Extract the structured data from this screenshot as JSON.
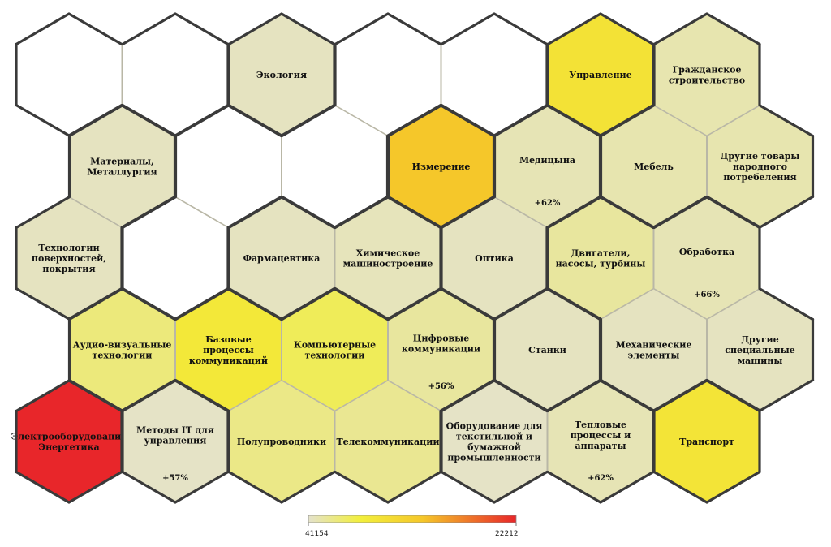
{
  "chart_data": {
    "type": "heatmap",
    "layout": "hexagonal",
    "colorscale": {
      "min_label": "41154",
      "max_label": "22212",
      "colors": [
        "#e4e2cc",
        "#f2ef3c",
        "#f5c72a",
        "#e8262a"
      ]
    },
    "cells": [
      {
        "row": 0,
        "col": 0,
        "label": "",
        "level": null,
        "pct": ""
      },
      {
        "row": 0,
        "col": 1,
        "label": "",
        "level": null,
        "pct": ""
      },
      {
        "row": 0,
        "col": 2,
        "label": "Экология",
        "level": 0.02,
        "pct": ""
      },
      {
        "row": 0,
        "col": 3,
        "label": "",
        "level": null,
        "pct": ""
      },
      {
        "row": 0,
        "col": 4,
        "label": "",
        "level": null,
        "pct": ""
      },
      {
        "row": 0,
        "col": 5,
        "label": "Управление",
        "level": 0.35,
        "pct": ""
      },
      {
        "row": 0,
        "col": 6,
        "label": "Гражданское строительство",
        "level": 0.05,
        "pct": ""
      },
      {
        "row": 1,
        "col": 0,
        "label": "Материалы, Металлургия",
        "level": 0.02,
        "pct": ""
      },
      {
        "row": 1,
        "col": 1,
        "label": "",
        "level": null,
        "pct": ""
      },
      {
        "row": 1,
        "col": 2,
        "label": "",
        "level": null,
        "pct": ""
      },
      {
        "row": 1,
        "col": 3,
        "label": "Измерение",
        "level": 0.55,
        "pct": ""
      },
      {
        "row": 1,
        "col": 4,
        "label": "Медицына",
        "level": 0.04,
        "pct": "+62%"
      },
      {
        "row": 1,
        "col": 5,
        "label": "Мебель",
        "level": 0.05,
        "pct": ""
      },
      {
        "row": 1,
        "col": 6,
        "label": "Другие товары народного потребеления",
        "level": 0.05,
        "pct": ""
      },
      {
        "row": 2,
        "col": 0,
        "label": "Технологии поверхностей, покрытия",
        "level": 0.02,
        "pct": ""
      },
      {
        "row": 2,
        "col": 1,
        "label": "",
        "level": null,
        "pct": ""
      },
      {
        "row": 2,
        "col": 2,
        "label": "Фармацевтика",
        "level": 0.02,
        "pct": ""
      },
      {
        "row": 2,
        "col": 3,
        "label": "Химическое машиностроение",
        "level": 0.03,
        "pct": ""
      },
      {
        "row": 2,
        "col": 4,
        "label": "Оптика",
        "level": 0.02,
        "pct": ""
      },
      {
        "row": 2,
        "col": 5,
        "label": "Двигатели, насосы, турбины",
        "level": 0.08,
        "pct": ""
      },
      {
        "row": 2,
        "col": 6,
        "label": "Обработка",
        "level": 0.04,
        "pct": "+66%"
      },
      {
        "row": 3,
        "col": 0,
        "label": "Аудио-визуальные технологии",
        "level": 0.14,
        "pct": ""
      },
      {
        "row": 3,
        "col": 1,
        "label": "Базовые процессы коммуникаций",
        "level": 0.3,
        "pct": ""
      },
      {
        "row": 3,
        "col": 2,
        "label": "Компьютерные технологии",
        "level": 0.2,
        "pct": ""
      },
      {
        "row": 3,
        "col": 3,
        "label": "Цифровые коммуникации",
        "level": 0.08,
        "pct": "+56%"
      },
      {
        "row": 3,
        "col": 4,
        "label": "Станки",
        "level": 0.02,
        "pct": ""
      },
      {
        "row": 3,
        "col": 5,
        "label": "Механические элементы",
        "level": 0.02,
        "pct": ""
      },
      {
        "row": 3,
        "col": 6,
        "label": "Другие специальные машины",
        "level": 0.02,
        "pct": ""
      },
      {
        "row": 4,
        "col": 0,
        "label": "Электрооборудование Энергетика",
        "level": 1.0,
        "pct": ""
      },
      {
        "row": 4,
        "col": 1,
        "label": "Методы IT для управления",
        "level": 0.01,
        "pct": "+57%"
      },
      {
        "row": 4,
        "col": 2,
        "label": "Полупроводники",
        "level": 0.12,
        "pct": ""
      },
      {
        "row": 4,
        "col": 3,
        "label": "Телекоммуникации",
        "level": 0.1,
        "pct": ""
      },
      {
        "row": 4,
        "col": 4,
        "label": "Оборудование для текстильной и бумажной промышленности",
        "level": 0.01,
        "pct": ""
      },
      {
        "row": 4,
        "col": 5,
        "label": "Тепловые процессы и аппараты",
        "level": 0.04,
        "pct": "+62%"
      },
      {
        "row": 4,
        "col": 6,
        "label": "Транспорт",
        "level": 0.33,
        "pct": ""
      }
    ]
  }
}
